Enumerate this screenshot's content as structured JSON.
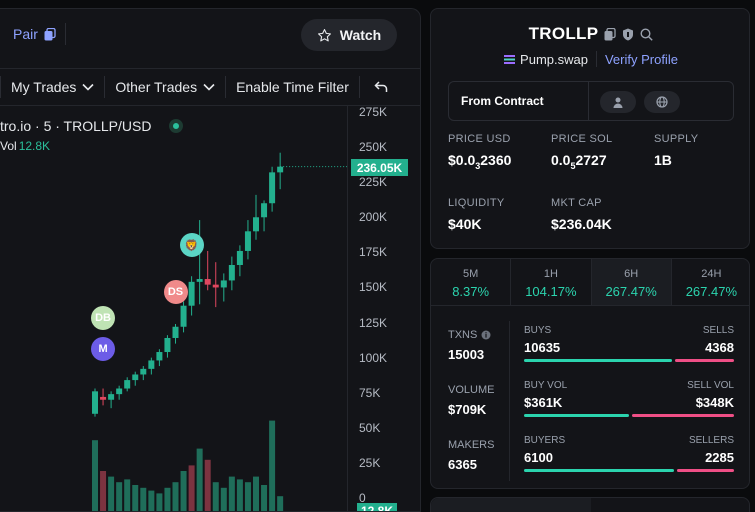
{
  "toolbar": {
    "pair_label": "Pair",
    "watch_label": "Watch",
    "my_trades": "My Trades",
    "other_trades": "Other Trades",
    "time_filter": "Enable Time Filter"
  },
  "chart_header": {
    "title": "tro.io · 5 · TROLLP/USD",
    "vol_label": "Vol",
    "vol_value": "12.8K"
  },
  "colors": {
    "up": "#23b08e",
    "down": "#e0475f",
    "accent": "#8ea2ff",
    "positive_text": "#2bd4ae",
    "sell_bar": "#ef4f86"
  },
  "chart_data": {
    "type": "candlestick",
    "y_ticks": [
      "275K",
      "250K",
      "225K",
      "200K",
      "175K",
      "150K",
      "125K",
      "100K",
      "75K",
      "50K",
      "25K",
      "0"
    ],
    "ylim": [
      0,
      275000
    ],
    "last_price_label": "236.05K",
    "volume_label": "12.8K",
    "candles": [
      {
        "o": 60000,
        "h": 78000,
        "l": 58000,
        "c": 76000
      },
      {
        "o": 72000,
        "h": 78000,
        "l": 66000,
        "c": 70000
      },
      {
        "o": 70000,
        "h": 76000,
        "l": 64000,
        "c": 74000
      },
      {
        "o": 74000,
        "h": 80000,
        "l": 70000,
        "c": 78000
      },
      {
        "o": 78000,
        "h": 86000,
        "l": 76000,
        "c": 84000
      },
      {
        "o": 84000,
        "h": 90000,
        "l": 80000,
        "c": 88000
      },
      {
        "o": 88000,
        "h": 94000,
        "l": 84000,
        "c": 92000
      },
      {
        "o": 92000,
        "h": 100000,
        "l": 88000,
        "c": 98000
      },
      {
        "o": 98000,
        "h": 106000,
        "l": 94000,
        "c": 104000
      },
      {
        "o": 104000,
        "h": 116000,
        "l": 100000,
        "c": 114000
      },
      {
        "o": 114000,
        "h": 124000,
        "l": 110000,
        "c": 122000
      },
      {
        "o": 122000,
        "h": 140000,
        "l": 118000,
        "c": 137000
      },
      {
        "o": 137000,
        "h": 158000,
        "l": 130000,
        "c": 154000
      },
      {
        "o": 154000,
        "h": 198000,
        "l": 138000,
        "c": 156000
      },
      {
        "o": 156000,
        "h": 176000,
        "l": 148000,
        "c": 152000
      },
      {
        "o": 152000,
        "h": 168000,
        "l": 136000,
        "c": 150000
      },
      {
        "o": 150000,
        "h": 160000,
        "l": 140000,
        "c": 155000
      },
      {
        "o": 155000,
        "h": 172000,
        "l": 148000,
        "c": 166000
      },
      {
        "o": 166000,
        "h": 180000,
        "l": 158000,
        "c": 176000
      },
      {
        "o": 176000,
        "h": 198000,
        "l": 170000,
        "c": 190000
      },
      {
        "o": 190000,
        "h": 216000,
        "l": 184000,
        "c": 200000
      },
      {
        "o": 200000,
        "h": 212000,
        "l": 190000,
        "c": 210000
      },
      {
        "o": 210000,
        "h": 236000,
        "l": 204000,
        "c": 232000
      },
      {
        "o": 232000,
        "h": 246000,
        "l": 220000,
        "c": 236050
      }
    ],
    "volumes": [
      {
        "v": 52,
        "up": true
      },
      {
        "v": 30,
        "up": false
      },
      {
        "v": 26,
        "up": true
      },
      {
        "v": 22,
        "up": true
      },
      {
        "v": 24,
        "up": true
      },
      {
        "v": 20,
        "up": true
      },
      {
        "v": 18,
        "up": true
      },
      {
        "v": 16,
        "up": true
      },
      {
        "v": 14,
        "up": true
      },
      {
        "v": 18,
        "up": true
      },
      {
        "v": 22,
        "up": true
      },
      {
        "v": 30,
        "up": true
      },
      {
        "v": 34,
        "up": false
      },
      {
        "v": 46,
        "up": true
      },
      {
        "v": 38,
        "up": false
      },
      {
        "v": 22,
        "up": true
      },
      {
        "v": 18,
        "up": true
      },
      {
        "v": 26,
        "up": true
      },
      {
        "v": 24,
        "up": true
      },
      {
        "v": 22,
        "up": true
      },
      {
        "v": 26,
        "up": true
      },
      {
        "v": 20,
        "up": true
      },
      {
        "v": 66,
        "up": true
      },
      {
        "v": 12,
        "up": true
      }
    ],
    "markers": [
      {
        "label": "DB",
        "price": 128000,
        "candle": 1
      },
      {
        "label": "M",
        "price": 106000,
        "candle": 1
      },
      {
        "label": "DS",
        "price": 147000,
        "candle": 10
      },
      {
        "label": "🦁",
        "price": 180000,
        "candle": 12
      }
    ]
  },
  "token": {
    "name": "TROLLP",
    "dex": "Pump.swap",
    "verify": "Verify Profile",
    "from_contract": "From Contract"
  },
  "stats": {
    "price_usd_label": "PRICE USD",
    "price_usd": "$0.0",
    "price_usd_sub": "3",
    "price_usd_tail": "2360",
    "price_sol_label": "PRICE SOL",
    "price_sol": "0.0",
    "price_sol_sub": "5",
    "price_sol_tail": "2727",
    "supply_label": "SUPPLY",
    "supply": "1B",
    "liquidity_label": "LIQUIDITY",
    "liquidity": "$40K",
    "mktcap_label": "MKT CAP",
    "mktcap": "$236.04K"
  },
  "periods": [
    {
      "label": "5M",
      "value": "8.37%"
    },
    {
      "label": "1H",
      "value": "104.17%"
    },
    {
      "label": "6H",
      "value": "267.47%"
    },
    {
      "label": "24H",
      "value": "267.47%"
    }
  ],
  "trades": {
    "txns_label": "TXNS",
    "txns": "15003",
    "volume_label": "VOLUME",
    "volume": "$709K",
    "makers_label": "MAKERS",
    "makers": "6365",
    "buys_label": "BUYS",
    "buys": "10635",
    "sells_label": "SELLS",
    "sells": "4368",
    "buy_vol_label": "BUY VOL",
    "buy_vol": "$361K",
    "sell_vol_label": "SELL VOL",
    "sell_vol": "$348K",
    "buyers_label": "BUYERS",
    "buyers": "6100",
    "sellers_label": "SELLERS",
    "sellers": "2285"
  }
}
